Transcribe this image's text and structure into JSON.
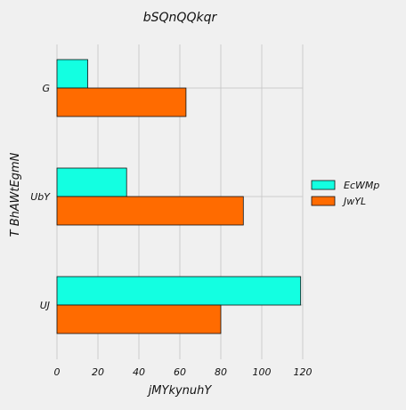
{
  "chart_data": {
    "type": "bar",
    "orientation": "horizontal",
    "title": "bSQnQQkqr",
    "xlabel": "jMYkynuhY",
    "ylabel": "T BhAWtEgmN",
    "categories": [
      "UJ",
      "UbY",
      "G"
    ],
    "series": [
      {
        "name": "EcWMp",
        "values": [
          119,
          34,
          15
        ],
        "color": "#13ffe1"
      },
      {
        "name": "JwYL",
        "values": [
          80,
          91,
          63
        ],
        "color": "#ff6b00"
      }
    ],
    "xlim": [
      0,
      120
    ],
    "xticks": [
      0,
      20,
      40,
      60,
      80,
      100,
      120
    ],
    "grid": true,
    "legend_position": "right"
  }
}
